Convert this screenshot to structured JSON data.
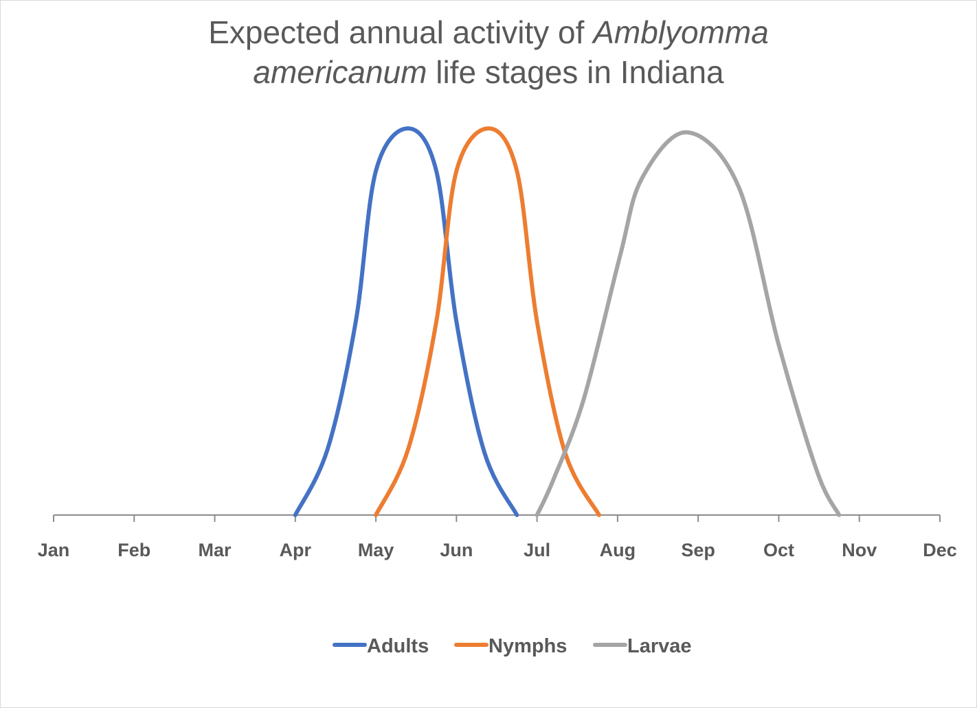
{
  "chart_data": {
    "type": "line",
    "title_parts": [
      {
        "text": "Expected annual activity of ",
        "italic": false
      },
      {
        "text": "Amblyomma",
        "italic": true
      },
      {
        "text": "americanum",
        "italic": true,
        "newline": true
      },
      {
        "text": " life stages in Indiana",
        "italic": false
      }
    ],
    "title": "Expected annual activity of Amblyomma americanum life stages in Indiana",
    "xlabel": "",
    "ylabel": "",
    "categories": [
      "Jan",
      "Feb",
      "Mar",
      "Apr",
      "May",
      "Jun",
      "Jul",
      "Aug",
      "Sep",
      "Oct",
      "Nov",
      "Dec"
    ],
    "x_unit": "month index (Jan = 0)",
    "xlim": [
      0,
      11
    ],
    "ylim": [
      0,
      100
    ],
    "y_axis_visible": false,
    "grid": false,
    "smoothed": true,
    "legend_position": "bottom",
    "series": [
      {
        "name": "Adults",
        "color": "#4472C4",
        "points": [
          [
            3.0,
            0
          ],
          [
            3.4,
            17
          ],
          [
            3.75,
            50
          ],
          [
            4.0,
            89
          ],
          [
            4.4,
            100
          ],
          [
            4.75,
            89
          ],
          [
            5.0,
            50
          ],
          [
            5.35,
            16
          ],
          [
            5.75,
            0
          ]
        ]
      },
      {
        "name": "Nymphs",
        "color": "#ED7D31",
        "points": [
          [
            4.0,
            0
          ],
          [
            4.4,
            17
          ],
          [
            4.75,
            50
          ],
          [
            5.0,
            89
          ],
          [
            5.4,
            100
          ],
          [
            5.75,
            89
          ],
          [
            6.0,
            50
          ],
          [
            6.35,
            16
          ],
          [
            6.77,
            0
          ]
        ]
      },
      {
        "name": "Larvae",
        "color": "#A5A5A5",
        "points": [
          [
            6.0,
            0
          ],
          [
            6.2,
            9
          ],
          [
            6.58,
            30
          ],
          [
            7.03,
            67
          ],
          [
            7.3,
            87
          ],
          [
            7.86,
            99
          ],
          [
            8.5,
            85
          ],
          [
            9.0,
            44
          ],
          [
            9.48,
            11
          ],
          [
            9.75,
            0
          ]
        ]
      }
    ]
  }
}
